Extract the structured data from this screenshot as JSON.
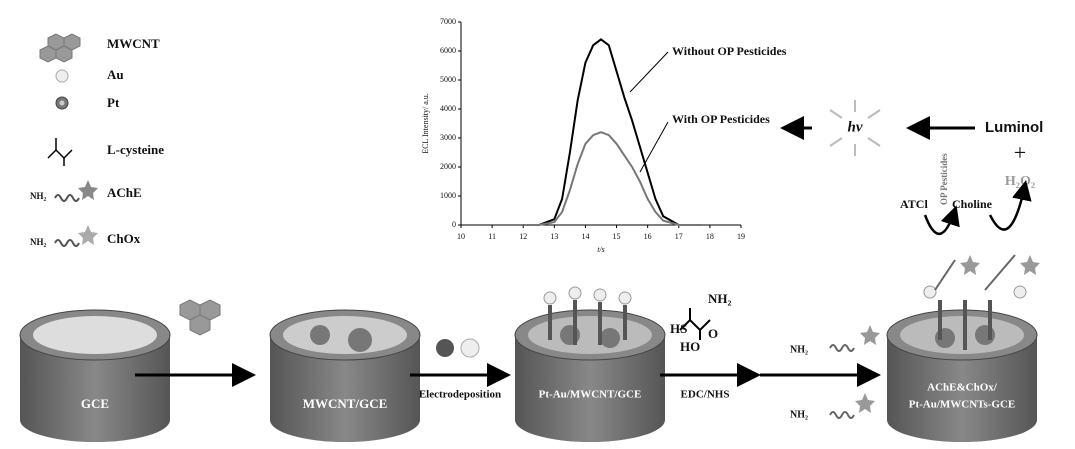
{
  "legend": {
    "items": [
      "MWCNT",
      "Au",
      "Pt",
      "L-cysteine",
      "AChE",
      "ChOx"
    ],
    "nh2": "NH₂"
  },
  "molecule": {
    "nh2": "NH₂",
    "hs": "HS",
    "ho": "HO",
    "o": "O"
  },
  "steps": {
    "gce": "GCE",
    "mwcnt_gce": "MWCNT/GCE",
    "electrodeposition": "Electrodeposition",
    "pt_au": "Pt-Au/MWCNT/GCE",
    "edc": "EDC/NHS",
    "nh2_a": "NH₂",
    "nh2_b": "NH₂",
    "final_1": "AChE&ChOx/",
    "final_2": "Pt-Au/MWCNTs-GCE"
  },
  "reaction": {
    "hv": "hν",
    "luminol": "Luminol",
    "plus": "+",
    "h2o2": "H₂O₂",
    "atcl": "ATCl",
    "choline": "Choline",
    "op": "OP Pesticides"
  },
  "chart_data": {
    "type": "line",
    "xlabel": "t/s",
    "ylabel": "ECL Intensity/ a.u.",
    "x": [
      12,
      12.5,
      13,
      13.25,
      13.5,
      13.75,
      14,
      14.25,
      14.5,
      14.75,
      15,
      15.25,
      15.5,
      15.75,
      16,
      16.25,
      16.5,
      17,
      17.7
    ],
    "series": [
      {
        "name": "Without OP Pesticides",
        "color": "#000000",
        "values": [
          0,
          0,
          200,
          900,
          2500,
          4300,
          5600,
          6200,
          6400,
          6200,
          5300,
          4400,
          3600,
          2700,
          1800,
          900,
          300,
          0,
          0
        ]
      },
      {
        "name": "With OP Pesticides",
        "color": "#777777",
        "values": [
          0,
          0,
          100,
          450,
          1200,
          2100,
          2800,
          3100,
          3200,
          3100,
          2800,
          2400,
          2000,
          1500,
          900,
          450,
          150,
          0,
          0
        ]
      }
    ],
    "xlim": [
      10,
      19
    ],
    "xticks": [
      10,
      11,
      12,
      13,
      14,
      15,
      16,
      17,
      18,
      19
    ],
    "ylim": [
      0,
      7000
    ],
    "yticks": [
      0,
      1000,
      2000,
      3000,
      4000,
      5000,
      6000,
      7000
    ]
  }
}
